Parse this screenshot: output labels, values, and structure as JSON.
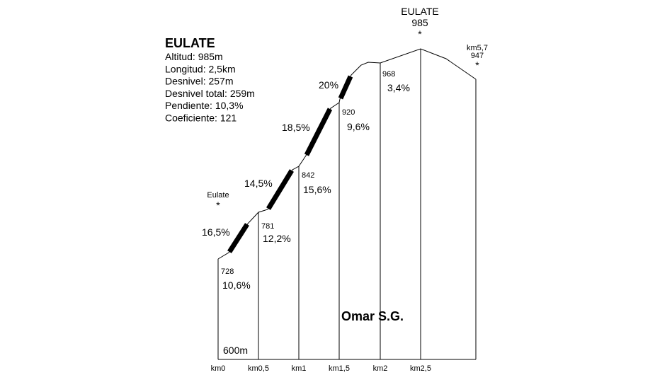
{
  "info": {
    "title": "EULATE",
    "stats": [
      "Altitud:  985m",
      "Longitud:  2,5km",
      "Desnivel:  257m",
      "Desnivel total:  259m",
      "Pendiente:  10,3%",
      "Coeficiente:  121"
    ]
  },
  "summit": {
    "name": "EULATE",
    "altitude": "985",
    "marker": "*"
  },
  "end": {
    "km": "km5,7",
    "altitude": "947",
    "marker": "*"
  },
  "start": {
    "name": "Eulate",
    "marker": "*"
  },
  "segments": [
    {
      "km": "km0",
      "altitude": "728",
      "gradient": "10,6%"
    },
    {
      "km": "km0,5",
      "altitude": "781",
      "gradient": "12,2%"
    },
    {
      "km": "km1",
      "altitude": "842",
      "gradient": "15,6%"
    },
    {
      "km": "km1,5",
      "altitude": "920",
      "gradient": "9,6%"
    },
    {
      "km": "km2",
      "altitude": "968",
      "gradient": "3,4%"
    },
    {
      "km": "km2,5"
    }
  ],
  "steep_sections": [
    "16,5%",
    "14,5%",
    "18,5%",
    "20%"
  ],
  "base_altitude": "600m",
  "author": "Omar S.G."
}
